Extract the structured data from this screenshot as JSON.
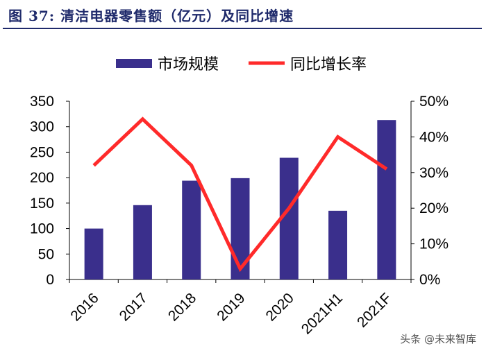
{
  "figure": {
    "title": "图 37: 清洁电器零售额（亿元）及同比增速"
  },
  "watermark": "头条 @未来智库",
  "chart_data": {
    "type": "bar+line",
    "title": "图 37: 清洁电器零售额（亿元）及同比增速",
    "categories": [
      "2016",
      "2017",
      "2018",
      "2019",
      "2020",
      "2021H1",
      "2021F"
    ],
    "series": [
      {
        "name": "市场规模",
        "type": "bar",
        "axis": "left",
        "color": "#3a2f8c",
        "values": [
          100,
          146,
          194,
          199,
          239,
          135,
          313
        ]
      },
      {
        "name": "同比增长率",
        "type": "line",
        "axis": "right",
        "color": "#ff2a2a",
        "values": [
          32,
          45,
          32,
          3,
          20,
          40,
          31
        ]
      }
    ],
    "y_left": {
      "min": 0,
      "max": 350,
      "ticks": [
        0,
        50,
        100,
        150,
        200,
        250,
        300,
        350
      ]
    },
    "y_right": {
      "min": 0,
      "max": 50,
      "ticks": [
        "0%",
        "10%",
        "20%",
        "30%",
        "40%",
        "50%"
      ]
    },
    "legend": [
      "市场规模",
      "同比增长率"
    ],
    "legend_position": "top"
  }
}
